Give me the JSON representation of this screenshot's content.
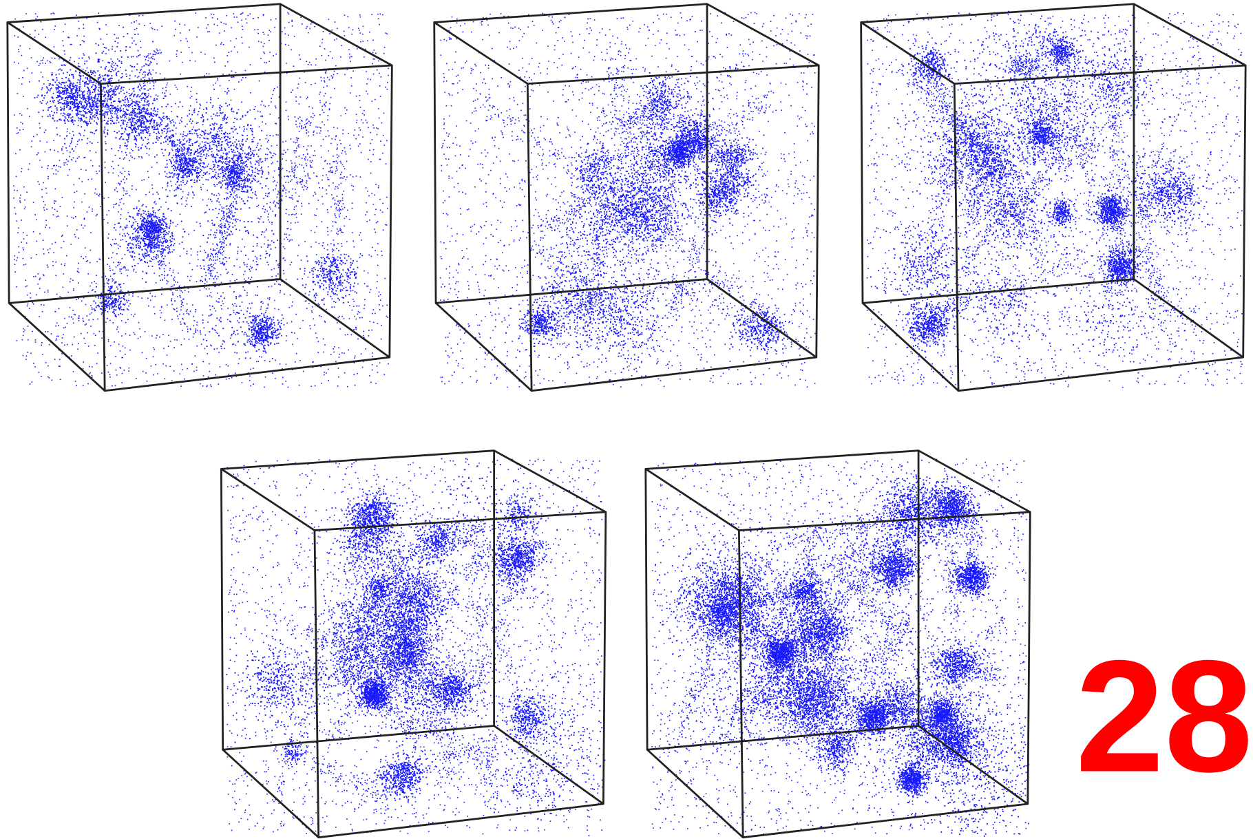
{
  "label": "28"
}
